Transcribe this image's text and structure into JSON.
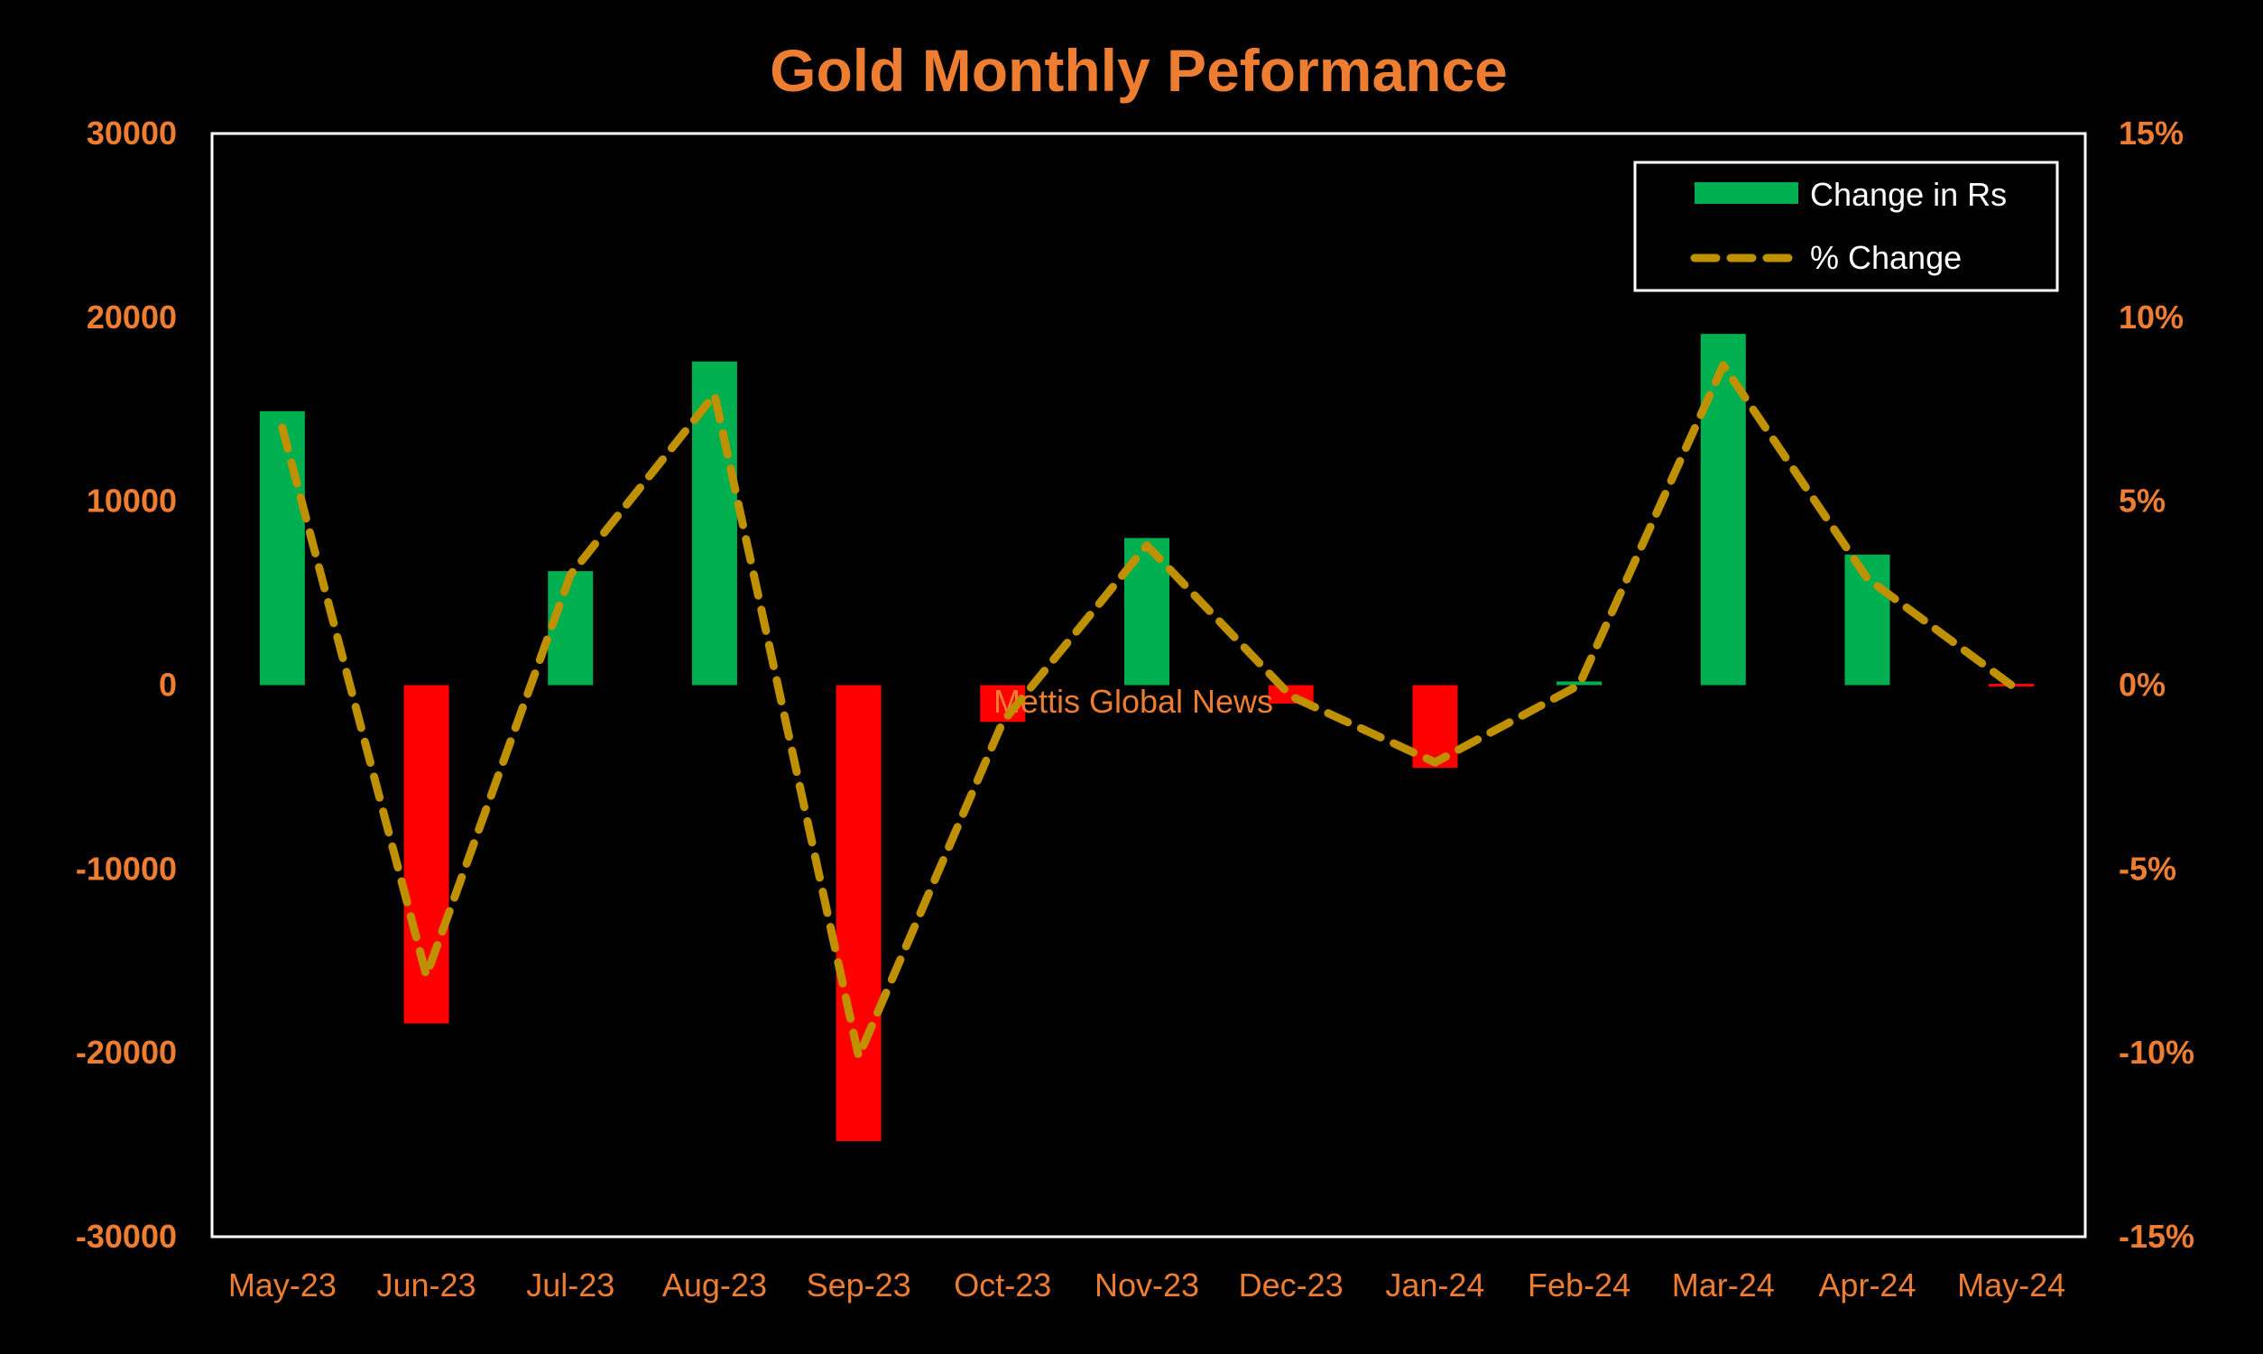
{
  "chart_data": {
    "type": "bar+line",
    "title": "Gold Monthly Peformance",
    "categories": [
      "May-23",
      "Jun-23",
      "Jul-23",
      "Aug-23",
      "Sep-23",
      "Oct-23",
      "Nov-23",
      "Dec-23",
      "Jan-24",
      "Feb-24",
      "Mar-24",
      "Apr-24",
      "May-24"
    ],
    "series": [
      {
        "name": "Change in Rs",
        "kind": "bar",
        "axis": "left",
        "values": [
          14900,
          -18400,
          6200,
          17600,
          -24800,
          -2000,
          8000,
          -1000,
          -4500,
          200,
          19100,
          7100,
          -100
        ]
      },
      {
        "name": "% Change",
        "kind": "line",
        "axis": "right",
        "values": [
          7.0,
          -7.9,
          3.0,
          7.9,
          -10.1,
          -1.0,
          3.8,
          -0.3,
          -2.1,
          0.0,
          8.7,
          2.9,
          0.0
        ]
      }
    ],
    "y_left": {
      "min": -30000,
      "max": 30000,
      "ticks": [
        "30000",
        "20000",
        "10000",
        "0",
        "-10000",
        "-20000",
        "-30000"
      ],
      "tick_values": [
        30000,
        20000,
        10000,
        0,
        -10000,
        -20000,
        -30000
      ]
    },
    "y_right": {
      "min": -15,
      "max": 15,
      "ticks": [
        "15%",
        "10%",
        "5%",
        "0%",
        "-5%",
        "-10%",
        "-15%"
      ],
      "tick_values": [
        15,
        10,
        5,
        0,
        -5,
        -10,
        -15
      ]
    },
    "legend_position": "top-right",
    "grid": false,
    "watermark": "Mettis Global News",
    "colors": {
      "background": "#000000",
      "text": "#ED7D31",
      "positive_bar": "#00B050",
      "negative_bar": "#FF0000",
      "line": "#BF9000",
      "frame": "#FFFFFF",
      "legend_text": "#FFFFFF"
    }
  }
}
